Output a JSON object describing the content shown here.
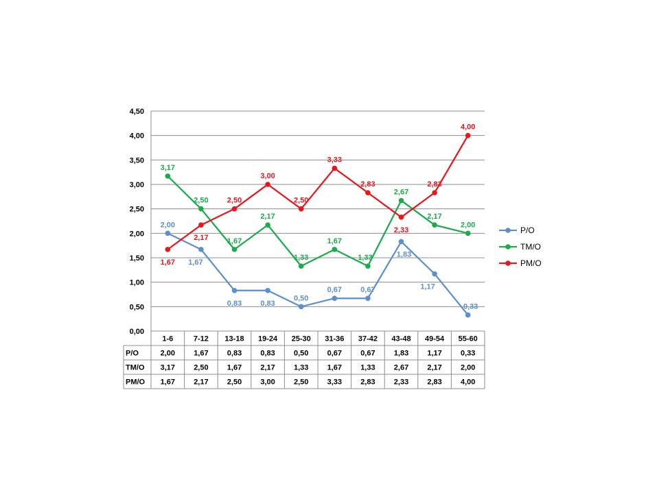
{
  "chart_data": {
    "type": "line",
    "categories": [
      "1-6",
      "7-12",
      "13-18",
      "19-24",
      "25-30",
      "31-36",
      "37-42",
      "43-48",
      "49-54",
      "55-60"
    ],
    "yticks": [
      "0,00",
      "0,50",
      "1,00",
      "1,50",
      "2,00",
      "2,50",
      "3,00",
      "3,50",
      "4,00",
      "4,50"
    ],
    "ylim": [
      0,
      4.5
    ],
    "grid": true,
    "legend_position": "right",
    "data_table": true,
    "series": [
      {
        "name": "P/O",
        "color": "#5b8fcf",
        "values": [
          2.0,
          1.67,
          0.83,
          0.83,
          0.5,
          0.67,
          0.67,
          1.83,
          1.17,
          0.33
        ],
        "labels": [
          "2,00",
          "1,67",
          "0,83",
          "0,83",
          "0,50",
          "0,67",
          "0,67",
          "1,83",
          "1,17",
          "0,33"
        ]
      },
      {
        "name": "TM/O",
        "color": "#1aab4b",
        "values": [
          3.17,
          2.5,
          1.67,
          2.17,
          1.33,
          1.67,
          1.33,
          2.67,
          2.17,
          2.0
        ],
        "labels": [
          "3,17",
          "2,50",
          "1,67",
          "2,17",
          "1,33",
          "1,67",
          "1,33",
          "2,67",
          "2,17",
          "2,00"
        ]
      },
      {
        "name": "PM/O",
        "color": "#e8161b",
        "values": [
          1.67,
          2.17,
          2.5,
          3.0,
          2.5,
          3.33,
          2.83,
          2.33,
          2.83,
          4.0
        ],
        "labels": [
          "1,67",
          "2,17",
          "2,50",
          "3,00",
          "2,50",
          "3,33",
          "2,83",
          "2,33",
          "2,83",
          "4,00"
        ]
      }
    ]
  }
}
